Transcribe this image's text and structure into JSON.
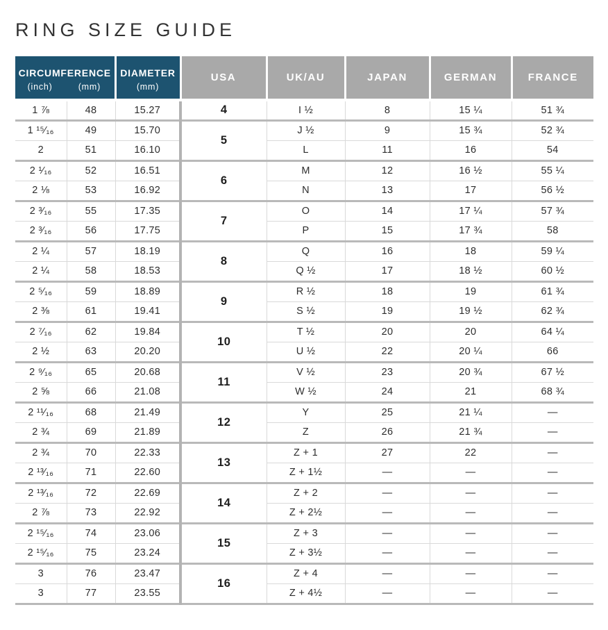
{
  "page": {
    "title": "RING SIZE GUIDE"
  },
  "colors": {
    "header_blue": "#1d5370",
    "header_gray": "#a9a9a9",
    "border_thick": "#b9b9b9",
    "border_thin": "#d9d9d9",
    "title_text": "#323232",
    "cell_text": "#2d2d2d"
  },
  "table": {
    "headers": {
      "circumference_label": "CIRCUMFERENCE",
      "circumference_sub_inch": "(inch)",
      "circumference_sub_mm": "(mm)",
      "diameter_label": "DIAMETER",
      "diameter_sub": "(mm)",
      "usa": "USA",
      "uk_au": "UK/AU",
      "japan": "JAPAN",
      "german": "GERMAN",
      "france": "FRANCE"
    },
    "groups": [
      {
        "usa": "4",
        "rows": [
          {
            "inch": "1 ⅞",
            "mm": "48",
            "diameter": "15.27",
            "uk_au": "I ½",
            "japan": "8",
            "german": "15 ¼",
            "france": "51 ¾"
          }
        ]
      },
      {
        "usa": "5",
        "rows": [
          {
            "inch": "1 ¹⁵⁄₁₆",
            "mm": "49",
            "diameter": "15.70",
            "uk_au": "J ½",
            "japan": "9",
            "german": "15 ¾",
            "france": "52 ¾"
          },
          {
            "inch": "2",
            "mm": "51",
            "diameter": "16.10",
            "uk_au": "L",
            "japan": "11",
            "german": "16",
            "france": "54"
          }
        ]
      },
      {
        "usa": "6",
        "rows": [
          {
            "inch": "2 ¹⁄₁₆",
            "mm": "52",
            "diameter": "16.51",
            "uk_au": "M",
            "japan": "12",
            "german": "16 ½",
            "france": "55 ¼"
          },
          {
            "inch": "2 ⅛",
            "mm": "53",
            "diameter": "16.92",
            "uk_au": "N",
            "japan": "13",
            "german": "17",
            "france": "56 ½"
          }
        ]
      },
      {
        "usa": "7",
        "rows": [
          {
            "inch": "2 ³⁄₁₆",
            "mm": "55",
            "diameter": "17.35",
            "uk_au": "O",
            "japan": "14",
            "german": "17 ¼",
            "france": "57 ¾"
          },
          {
            "inch": "2 ³⁄₁₆",
            "mm": "56",
            "diameter": "17.75",
            "uk_au": "P",
            "japan": "15",
            "german": "17 ¾",
            "france": "58"
          }
        ]
      },
      {
        "usa": "8",
        "rows": [
          {
            "inch": "2 ¼",
            "mm": "57",
            "diameter": "18.19",
            "uk_au": "Q",
            "japan": "16",
            "german": "18",
            "france": "59 ¼"
          },
          {
            "inch": "2 ¼",
            "mm": "58",
            "diameter": "18.53",
            "uk_au": "Q ½",
            "japan": "17",
            "german": "18 ½",
            "france": "60 ½"
          }
        ]
      },
      {
        "usa": "9",
        "rows": [
          {
            "inch": "2 ⁵⁄₁₆",
            "mm": "59",
            "diameter": "18.89",
            "uk_au": "R ½",
            "japan": "18",
            "german": "19",
            "france": "61 ¾"
          },
          {
            "inch": "2 ⅜",
            "mm": "61",
            "diameter": "19.41",
            "uk_au": "S ½",
            "japan": "19",
            "german": "19 ½",
            "france": "62 ¾"
          }
        ]
      },
      {
        "usa": "10",
        "rows": [
          {
            "inch": "2 ⁷⁄₁₆",
            "mm": "62",
            "diameter": "19.84",
            "uk_au": "T ½",
            "japan": "20",
            "german": "20",
            "france": "64 ¼"
          },
          {
            "inch": "2 ½",
            "mm": "63",
            "diameter": "20.20",
            "uk_au": "U ½",
            "japan": "22",
            "german": "20 ¼",
            "france": "66"
          }
        ]
      },
      {
        "usa": "11",
        "rows": [
          {
            "inch": "2 ⁹⁄₁₆",
            "mm": "65",
            "diameter": "20.68",
            "uk_au": "V ½",
            "japan": "23",
            "german": "20 ¾",
            "france": "67 ½"
          },
          {
            "inch": "2 ⅝",
            "mm": "66",
            "diameter": "21.08",
            "uk_au": "W ½",
            "japan": "24",
            "german": "21",
            "france": "68 ¾"
          }
        ]
      },
      {
        "usa": "12",
        "rows": [
          {
            "inch": "2 ¹¹⁄₁₆",
            "mm": "68",
            "diameter": "21.49",
            "uk_au": "Y",
            "japan": "25",
            "german": "21 ¼",
            "france": "—"
          },
          {
            "inch": "2 ¾",
            "mm": "69",
            "diameter": "21.89",
            "uk_au": "Z",
            "japan": "26",
            "german": "21 ¾",
            "france": "—"
          }
        ]
      },
      {
        "usa": "13",
        "rows": [
          {
            "inch": "2 ¾",
            "mm": "70",
            "diameter": "22.33",
            "uk_au": "Z + 1",
            "japan": "27",
            "german": "22",
            "france": "—"
          },
          {
            "inch": "2 ¹³⁄₁₆",
            "mm": "71",
            "diameter": "22.60",
            "uk_au": "Z + 1½",
            "japan": "—",
            "german": "—",
            "france": "—"
          }
        ]
      },
      {
        "usa": "14",
        "rows": [
          {
            "inch": "2 ¹³⁄₁₆",
            "mm": "72",
            "diameter": "22.69",
            "uk_au": "Z + 2",
            "japan": "—",
            "german": "—",
            "france": "—"
          },
          {
            "inch": "2 ⅞",
            "mm": "73",
            "diameter": "22.92",
            "uk_au": "Z + 2½",
            "japan": "—",
            "german": "—",
            "france": "—"
          }
        ]
      },
      {
        "usa": "15",
        "rows": [
          {
            "inch": "2 ¹⁵⁄₁₆",
            "mm": "74",
            "diameter": "23.06",
            "uk_au": "Z + 3",
            "japan": "—",
            "german": "—",
            "france": "—"
          },
          {
            "inch": "2 ¹⁵⁄₁₆",
            "mm": "75",
            "diameter": "23.24",
            "uk_au": "Z + 3½",
            "japan": "—",
            "german": "—",
            "france": "—"
          }
        ]
      },
      {
        "usa": "16",
        "rows": [
          {
            "inch": "3",
            "mm": "76",
            "diameter": "23.47",
            "uk_au": "Z + 4",
            "japan": "—",
            "german": "—",
            "france": "—"
          },
          {
            "inch": "3",
            "mm": "77",
            "diameter": "23.55",
            "uk_au": "Z + 4½",
            "japan": "—",
            "german": "—",
            "france": "—"
          }
        ]
      }
    ]
  }
}
